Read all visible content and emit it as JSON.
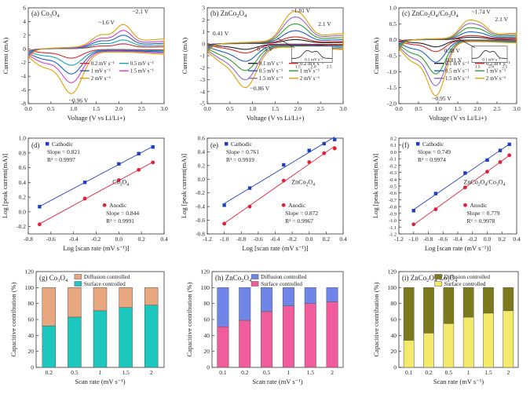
{
  "chart_data": [
    {
      "id": "a",
      "type": "line",
      "panel_label": "(a) Co3O4",
      "xlabel": "Voltage (V vs Li/Li+)",
      "ylabel": "Current (mA)",
      "xlim": [
        0,
        3
      ],
      "ylim": [
        -8,
        6
      ],
      "xticks": [
        "0.0",
        "0.5",
        "1.0",
        "1.5",
        "2.0",
        "2.5",
        "3.0"
      ],
      "yticks": [
        "-8",
        "-6",
        "-4",
        "-2",
        "0",
        "2",
        "4",
        "6"
      ],
      "annotations": [
        "~1.6 V",
        "~2.1 V",
        "~0.96 V"
      ],
      "series": [
        {
          "name": "0.2 mV s⁻¹",
          "color": "#d62728",
          "scale": 0.17
        },
        {
          "name": "0.5 mV s⁻¹",
          "color": "#17a2b8",
          "scale": 0.3
        },
        {
          "name": "1 mV s⁻¹",
          "color": "#1f5fbf",
          "scale": 0.46
        },
        {
          "name": "1.5 mV s⁻¹",
          "color": "#d63fc7",
          "scale": 0.62
        },
        {
          "name": "2 mV s⁻¹",
          "color": "#e0a100",
          "scale": 0.82
        }
      ],
      "peaks": {
        "ox1": [
          1.6,
          2.3
        ],
        "ox2": [
          2.1,
          4.4
        ],
        "red": [
          0.96,
          -7.3
        ],
        "high_end": 2.0,
        "low_end": -0.9
      }
    },
    {
      "id": "b",
      "type": "line",
      "panel_label": "(b) ZnCo2O4",
      "xlabel": "Voltage (V vs Li/Li+)",
      "ylabel": "Current (mA)",
      "xlim": [
        0,
        3
      ],
      "ylim": [
        -5,
        3
      ],
      "xticks": [
        "0.0",
        "0.5",
        "1.0",
        "1.5",
        "2.0",
        "2.5",
        "3.0"
      ],
      "yticks": [
        "-5",
        "-4",
        "-3",
        "-2",
        "-1",
        "0",
        "1",
        "2",
        "3"
      ],
      "annotations": [
        "~1.81 V",
        "2.1 V",
        "0.41 V",
        "0.75 V",
        "~0.86 V"
      ],
      "inset": {
        "xticks": [
          "1.5",
          "2.0",
          "2.5"
        ],
        "label": "0.1 mV s⁻¹"
      },
      "series": [
        {
          "name": "0.1 mV s⁻¹",
          "color": "#222222",
          "scale": 0.12
        },
        {
          "name": "0.2 mV s⁻¹",
          "color": "#d62728",
          "scale": 0.2
        },
        {
          "name": "0.5 mV s⁻¹",
          "color": "#1f5fbf",
          "scale": 0.38
        },
        {
          "name": "1 mV s⁻¹",
          "color": "#2ca02c",
          "scale": 0.58
        },
        {
          "name": "1.5 mV s⁻¹",
          "color": "#9467bd",
          "scale": 0.78
        },
        {
          "name": "2 mV s⁻¹",
          "color": "#e0a100",
          "scale": 0.95
        }
      ],
      "peaks": {
        "ox1": [
          1.81,
          2.2
        ],
        "ox2": [
          2.1,
          1.9
        ],
        "red": [
          0.86,
          -3.4
        ],
        "high_end": 1.0,
        "low_end": -0.5
      }
    },
    {
      "id": "c",
      "type": "line",
      "panel_label": "(c) ZnCo2O4/Co3O4",
      "xlabel": "Voltage (V vs Li/Li+)",
      "ylabel": "Current (mA)",
      "xlim": [
        0,
        3
      ],
      "ylim": [
        -2.0,
        1.0
      ],
      "xticks": [
        "0.0",
        "0.5",
        "1.0",
        "1.5",
        "2.0",
        "2.5",
        "3.0"
      ],
      "yticks": [
        "-2.0",
        "-1.5",
        "-1.0",
        "-0.5",
        "0.0",
        "0.5",
        "1.0"
      ],
      "annotations": [
        "~1.74 V",
        "2.1 V",
        "0.38 V",
        "0.81 V",
        "~0.95 V"
      ],
      "inset": {
        "xticks": [
          "1.5",
          "2.0",
          "2.5"
        ],
        "label": "0.1 mV s⁻¹"
      },
      "series": [
        {
          "name": "0.1 mV s⁻¹",
          "color": "#222222",
          "scale": 0.12
        },
        {
          "name": "0.2 mV s⁻¹",
          "color": "#d62728",
          "scale": 0.2
        },
        {
          "name": "0.5 mV s⁻¹",
          "color": "#1f5fbf",
          "scale": 0.38
        },
        {
          "name": "1 mV s⁻¹",
          "color": "#2ca02c",
          "scale": 0.58
        },
        {
          "name": "1.5 mV s⁻¹",
          "color": "#9467bd",
          "scale": 0.78
        },
        {
          "name": "2 mV s⁻¹",
          "color": "#e0a100",
          "scale": 0.95
        }
      ],
      "peaks": {
        "ox1": [
          1.74,
          0.6
        ],
        "ox2": [
          2.1,
          0.45
        ],
        "red": [
          0.95,
          -1.75
        ],
        "high_end": 0.25,
        "low_end": -0.1
      }
    },
    {
      "id": "d",
      "type": "scatter",
      "panel_label": "(d)",
      "inner_label": "Co3O4",
      "xlabel": "Log [scan rate (mV s⁻¹)]",
      "ylabel": "Log [peak current(mA)]",
      "xlim": [
        -0.8,
        0.4
      ],
      "ylim": [
        -0.3,
        1.0
      ],
      "xticks": [
        "-0.8",
        "-0.6",
        "-0.4",
        "-0.2",
        "0.0",
        "0.2",
        "0.4"
      ],
      "yticks": [
        "-0.2",
        "0.0",
        "0.2",
        "0.4",
        "0.6",
        "0.8",
        "1.0"
      ],
      "cathodic": {
        "name": "Cathodic",
        "slope": "Slope = 0.821",
        "r2": "R² = 0.9997",
        "x": [
          -0.7,
          -0.3,
          0.0,
          0.176,
          0.301
        ],
        "y": [
          0.07,
          0.4,
          0.65,
          0.79,
          0.88
        ]
      },
      "anodic": {
        "name": "Anodic",
        "slope": "Slope = 0.844",
        "r2": "R² = 0.9991",
        "x": [
          -0.7,
          -0.3,
          0.0,
          0.176,
          0.301
        ],
        "y": [
          -0.17,
          0.18,
          0.43,
          0.57,
          0.67
        ]
      }
    },
    {
      "id": "e",
      "type": "scatter",
      "panel_label": "(e)",
      "inner_label": "ZnCo2O4",
      "xlabel": "Log [scan rate (mV s⁻¹)]",
      "ylabel": "Log [peak current(mA)]",
      "xlim": [
        -1.2,
        0.4
      ],
      "ylim": [
        -0.8,
        0.6
      ],
      "xticks": [
        "-1.2",
        "-1.0",
        "-0.8",
        "-0.6",
        "-0.4",
        "-0.2",
        "0.0",
        "0.2",
        "0.4"
      ],
      "yticks": [
        "-0.8",
        "-0.6",
        "-0.4",
        "-0.2",
        "0.0",
        "0.2",
        "0.4",
        "0.6"
      ],
      "cathodic": {
        "name": "Cathodic",
        "slope": "Slope = 0.761",
        "r2": "R² = 0.9919",
        "x": [
          -1.0,
          -0.7,
          -0.3,
          0.0,
          0.176,
          0.301
        ],
        "y": [
          -0.38,
          -0.13,
          0.21,
          0.42,
          0.52,
          0.58
        ]
      },
      "anodic": {
        "name": "Anodic",
        "slope": "Slope = 0.872",
        "r2": "R² = 0.9967",
        "x": [
          -1.0,
          -0.7,
          -0.3,
          0.0,
          0.176,
          0.301
        ],
        "y": [
          -0.65,
          -0.4,
          -0.02,
          0.25,
          0.38,
          0.45
        ]
      }
    },
    {
      "id": "f",
      "type": "scatter",
      "panel_label": "(f)",
      "inner_label": "ZnCo2O4/Co3O4",
      "xlabel": "Log [scan rate (mV s⁻¹)]",
      "ylabel": "Log [peak current(mA)]",
      "xlim": [
        -1.2,
        0.4
      ],
      "ylim": [
        -1.2,
        0.2
      ],
      "xticks": [
        "-1.2",
        "-1.0",
        "-0.8",
        "-0.6",
        "-0.4",
        "-0.2",
        "0.0",
        "0.2",
        "0.4"
      ],
      "yticks": [
        "-1.2",
        "-1.1",
        "-1.0",
        "-0.9",
        "-0.8",
        "-0.7",
        "-0.6",
        "-0.5",
        "-0.4",
        "-0.3",
        "-0.2",
        "-0.1",
        "0.0",
        "0.1",
        "0.2"
      ],
      "cathodic": {
        "name": "Cathodic",
        "slope": "Slope = 0.749",
        "r2": "R² = 0.9974",
        "x": [
          -1.0,
          -0.7,
          -0.3,
          0.0,
          0.176,
          0.301
        ],
        "y": [
          -0.86,
          -0.61,
          -0.31,
          -0.12,
          0.02,
          0.11
        ]
      },
      "anodic": {
        "name": "Anodic",
        "slope": "Slope = 0.779",
        "r2": "R² = 0.9978",
        "x": [
          -1.0,
          -0.7,
          -0.3,
          0.0,
          0.176,
          0.301
        ],
        "y": [
          -1.06,
          -0.84,
          -0.52,
          -0.29,
          -0.15,
          -0.05
        ]
      }
    },
    {
      "id": "g",
      "type": "bar",
      "panel_label": "(g) Co3O4",
      "xlabel": "Scan rate (mV s⁻¹)",
      "ylabel": "Capacitive contribution (%)",
      "ylim": [
        0,
        120
      ],
      "yticks": [
        "0",
        "20",
        "40",
        "60",
        "80",
        "100",
        "120"
      ],
      "categories": [
        "0.2",
        "0.5",
        "1",
        "1.5",
        "2"
      ],
      "series": [
        {
          "name": "Surface controlled",
          "color": "#1cc7bd",
          "values": [
            52,
            63,
            71,
            75,
            78
          ]
        },
        {
          "name": "Diffusion controlled",
          "color": "#e8a77f",
          "values": [
            48,
            37,
            29,
            25,
            22
          ]
        }
      ]
    },
    {
      "id": "h",
      "type": "bar",
      "panel_label": "(h) ZnCo2O4",
      "xlabel": "Scan rate (mV s⁻¹)",
      "ylabel": "Capacitive contribution (%)",
      "ylim": [
        0,
        120
      ],
      "yticks": [
        "0",
        "20",
        "40",
        "60",
        "80",
        "100",
        "120"
      ],
      "categories": [
        "0.1",
        "0.2",
        "0.5",
        "1",
        "1.5",
        "2"
      ],
      "series": [
        {
          "name": "Surface controlled",
          "color": "#f05c9c",
          "values": [
            51,
            59,
            70,
            77,
            80,
            82
          ]
        },
        {
          "name": "Diffusion controlled",
          "color": "#6f86e8",
          "values": [
            49,
            41,
            30,
            23,
            20,
            18
          ]
        }
      ]
    },
    {
      "id": "i",
      "type": "bar",
      "panel_label": "(i) ZnCo2O4/Co3O4",
      "xlabel": "Scan rate (mV s⁻¹)",
      "ylabel": "Capacitive contribution (%)",
      "ylim": [
        0,
        120
      ],
      "yticks": [
        "0",
        "20",
        "40",
        "60",
        "80",
        "100",
        "120"
      ],
      "categories": [
        "0.1",
        "0.2",
        "0.5",
        "1",
        "1.5",
        "2"
      ],
      "series": [
        {
          "name": "Surface controlled",
          "color": "#f3ea6a",
          "values": [
            34,
            43,
            55,
            63,
            68,
            71
          ]
        },
        {
          "name": "Diffusion controlled",
          "color": "#7c7a1c",
          "values": [
            66,
            57,
            45,
            37,
            32,
            29
          ]
        }
      ]
    }
  ]
}
